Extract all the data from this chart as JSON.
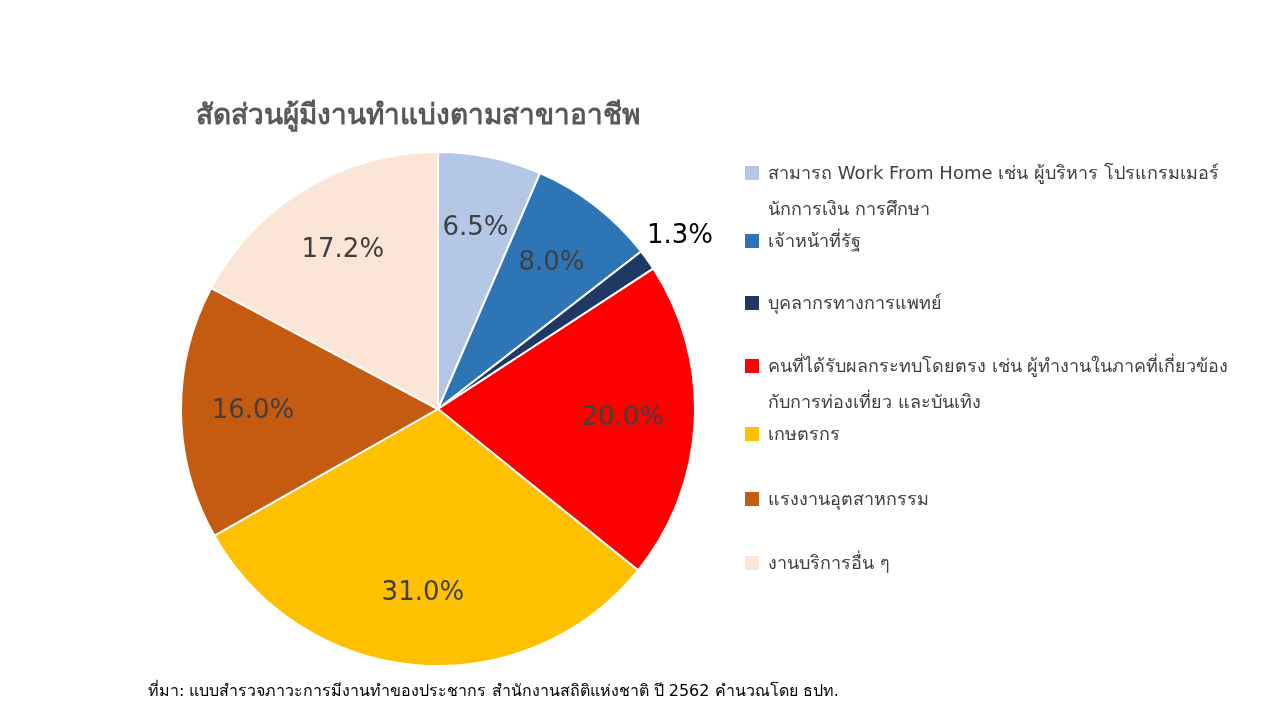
{
  "chart_data": {
    "type": "pie",
    "title": "สัดส่วนผู้มีงานทำแบ่งตามสาขาอาชีพ",
    "categories": [
      "สามารถ Work From Home เช่น ผู้บริหาร โปรแกรมเมอร์ นักการเงิน การศึกษา",
      "เจ้าหน้าที่รัฐ",
      "บุคลากรทางการแพทย์",
      "คนที่ได้รับผลกระทบโดยตรง เช่น ผู้ทำงานในภาคที่เกี่ยวข้องกับการท่องเที่ยว และบันเทิง",
      "เกษตรกร",
      "แรงงานอุตสาหกรรม",
      "งานบริการอื่น ๆ"
    ],
    "values": [
      6.5,
      8.0,
      1.3,
      20.0,
      31.0,
      16.0,
      17.2
    ],
    "value_labels": [
      "6.5%",
      "8.0%",
      "1.3%",
      "20.0%",
      "31.0%",
      "16.0%",
      "17.2%"
    ],
    "colors": [
      "#b4c7e7",
      "#2e75b6",
      "#1f3864",
      "#ff0000",
      "#ffc000",
      "#c55a11",
      "#fbe5d6"
    ],
    "legend": "right",
    "annotations": [
      "ที่มา: แบบสำรวจภาวะการมีงานทำของประชากร สำนักงานสถิติแห่งชาติ ปี 2562 คำนวณโดย ธปท."
    ]
  }
}
